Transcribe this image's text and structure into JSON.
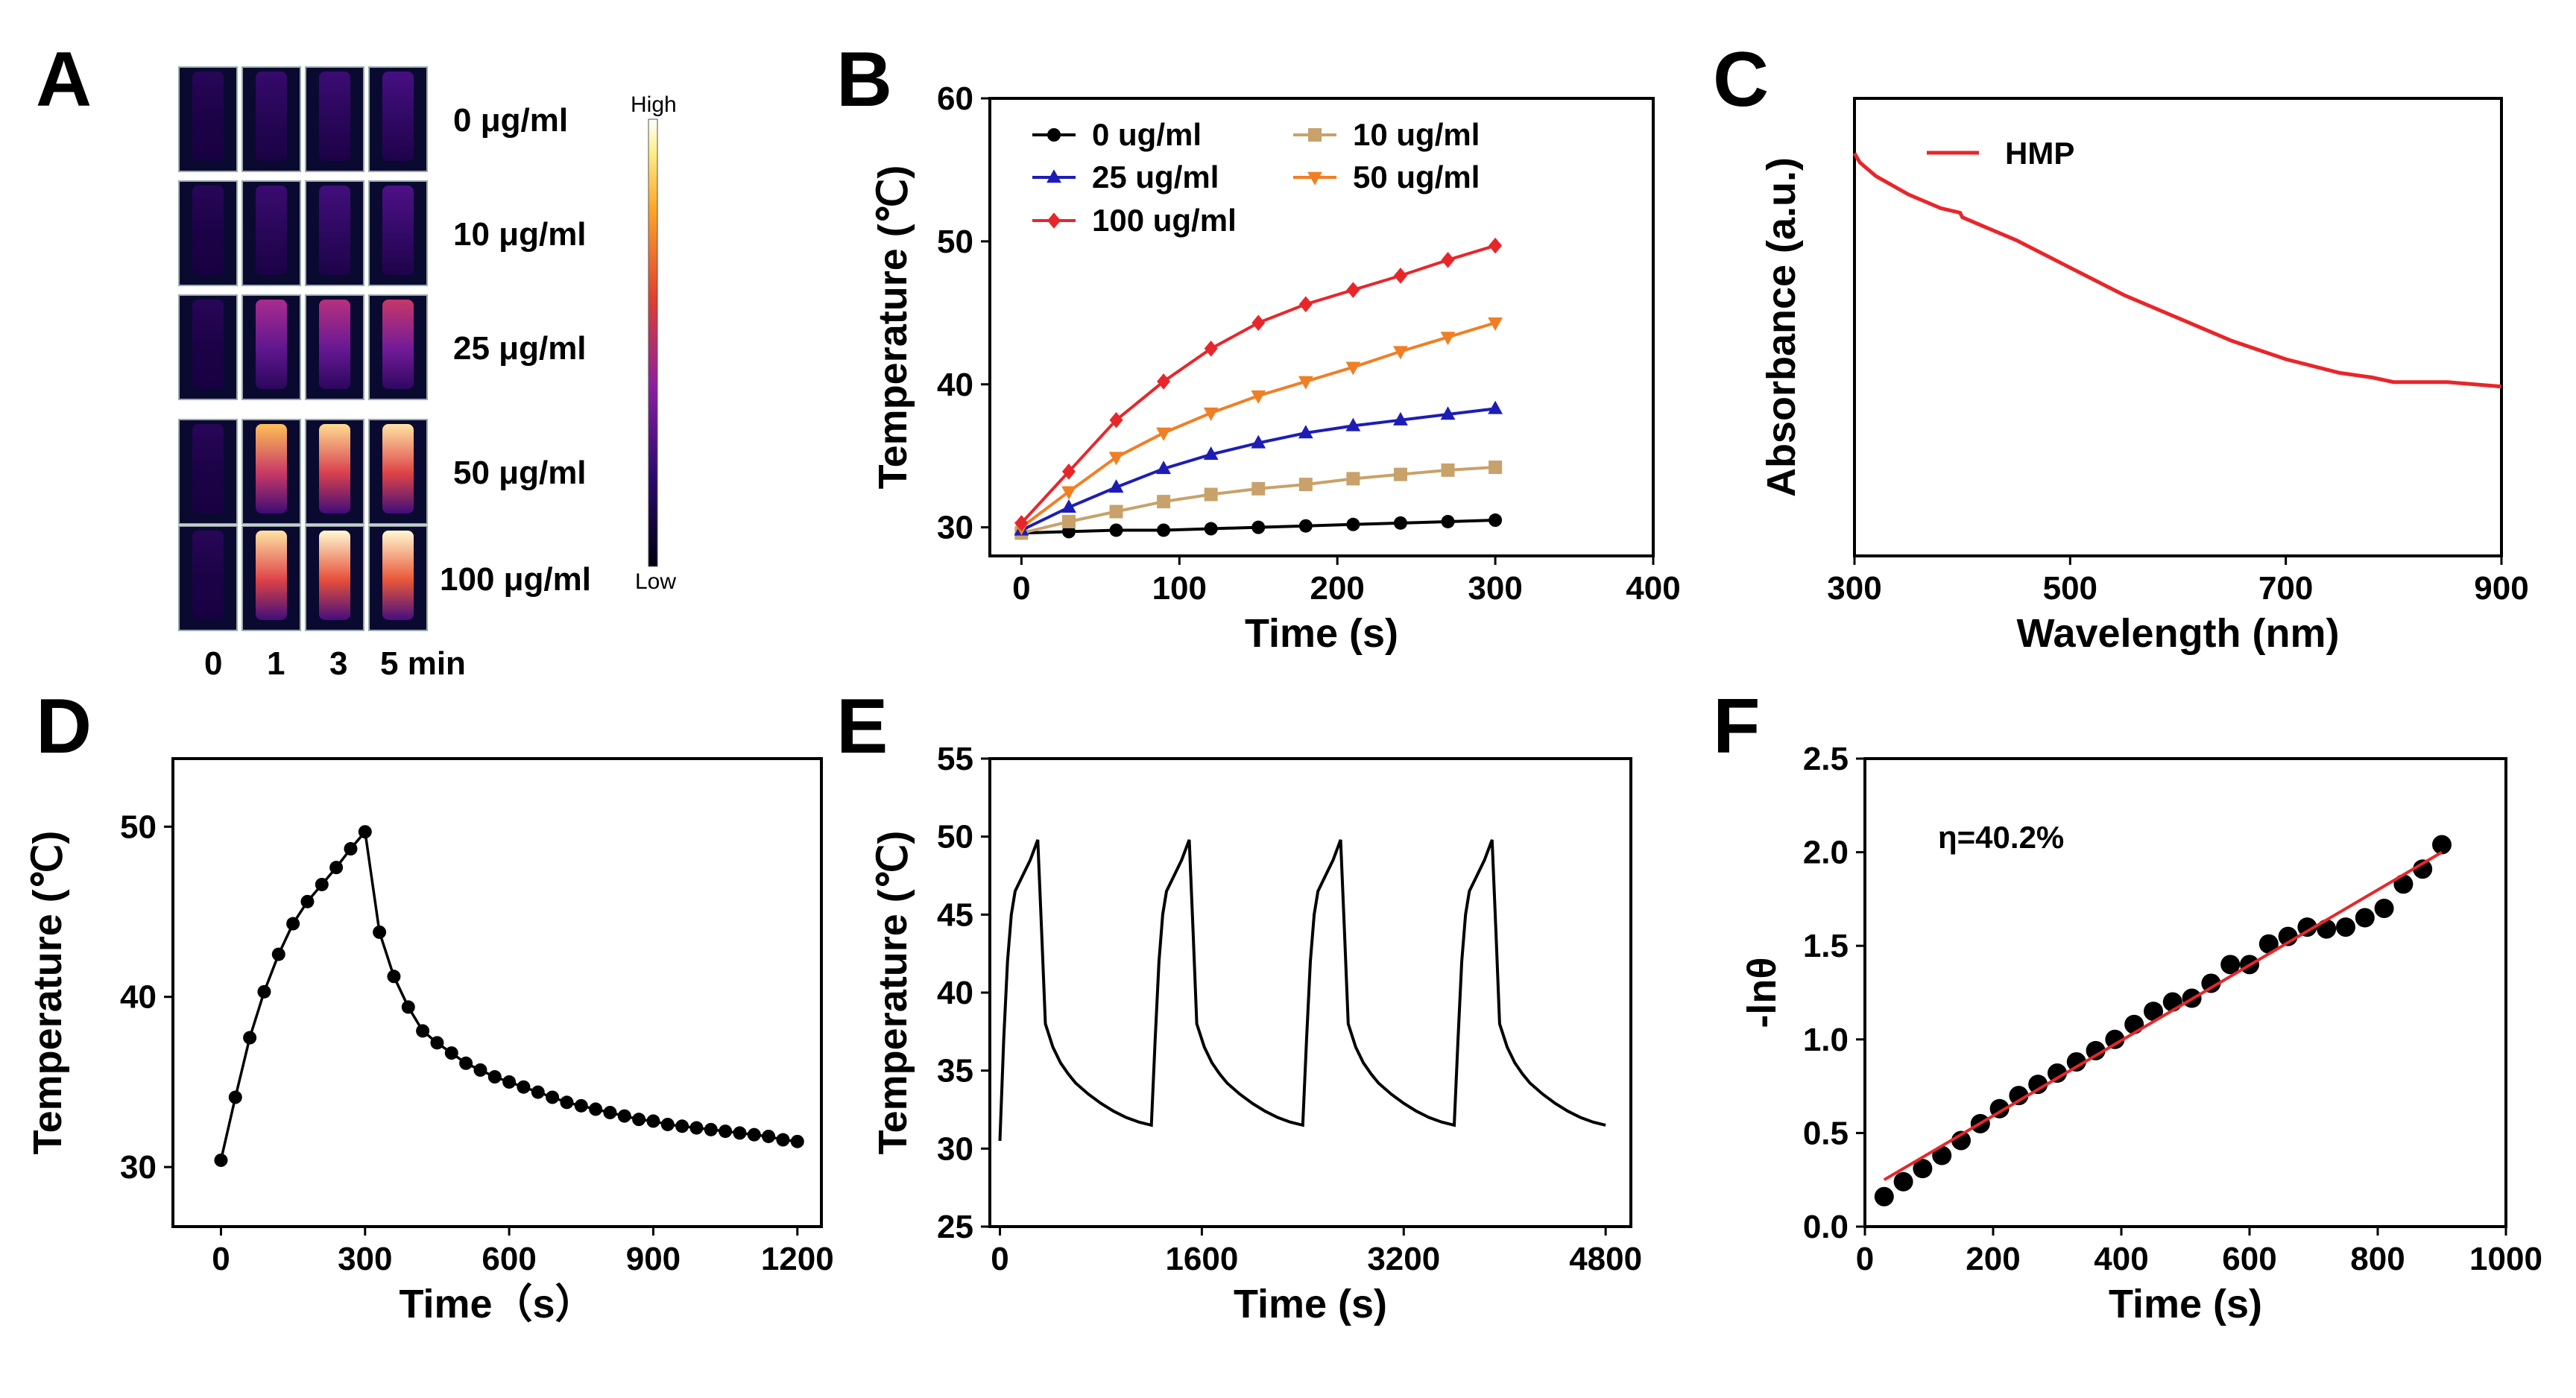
{
  "panel_letters": {
    "a": "A",
    "b": "B",
    "c": "C",
    "d": "D",
    "e": "E",
    "f": "F"
  },
  "colors": {
    "s0": "#000000",
    "s10": "#c8a26a",
    "s25": "#1d1db5",
    "s50": "#f07f24",
    "s100": "#e8262a",
    "hmp": "#e8262a",
    "fit": "#e8262a"
  },
  "panel_a": {
    "concentrations": [
      "0 μg/ml",
      "10 μg/ml",
      "25 μg/ml",
      "50 μg/ml",
      "100 μg/ml"
    ],
    "times": [
      "0",
      "1",
      "3",
      "5 min"
    ],
    "intensity": [
      [
        0.05,
        0.12,
        0.15,
        0.2
      ],
      [
        0.05,
        0.14,
        0.18,
        0.22
      ],
      [
        0.05,
        0.45,
        0.48,
        0.52
      ],
      [
        0.05,
        0.82,
        0.88,
        0.9
      ],
      [
        0.05,
        0.9,
        0.95,
        0.97
      ]
    ],
    "colorbar_high": "High",
    "colorbar_low": "Low"
  },
  "chart_data": [
    {
      "panel": "B",
      "type": "line",
      "xlabel": "Time (s)",
      "ylabel": "Temperature (℃)",
      "xlim": [
        -20,
        400
      ],
      "ylim": [
        28,
        60
      ],
      "xticks": [
        0,
        100,
        200,
        300,
        400
      ],
      "yticks": [
        30,
        40,
        50,
        60
      ],
      "x": [
        0,
        30,
        60,
        90,
        120,
        150,
        180,
        210,
        240,
        270,
        300
      ],
      "series": [
        {
          "name": "0 ug/ml",
          "color": "#000000",
          "marker": "circle",
          "values": [
            29.6,
            29.7,
            29.8,
            29.8,
            29.9,
            30.0,
            30.1,
            30.2,
            30.3,
            30.4,
            30.5
          ]
        },
        {
          "name": "10 ug/ml",
          "color": "#c8a26a",
          "marker": "square",
          "values": [
            29.6,
            30.4,
            31.1,
            31.8,
            32.3,
            32.7,
            33.0,
            33.4,
            33.7,
            34.0,
            34.2
          ]
        },
        {
          "name": "25 ug/ml",
          "color": "#1d1db5",
          "marker": "triangle-up",
          "values": [
            29.8,
            31.4,
            32.8,
            34.1,
            35.1,
            35.9,
            36.6,
            37.1,
            37.5,
            37.9,
            38.3
          ]
        },
        {
          "name": "50 ug/ml",
          "color": "#f07f24",
          "marker": "triangle-down",
          "values": [
            30.0,
            32.5,
            34.9,
            36.6,
            38.0,
            39.2,
            40.2,
            41.2,
            42.3,
            43.3,
            44.3
          ]
        },
        {
          "name": "100 ug/ml",
          "color": "#e8262a",
          "marker": "diamond",
          "values": [
            30.3,
            33.9,
            37.5,
            40.2,
            42.5,
            44.3,
            45.6,
            46.6,
            47.6,
            48.7,
            49.7
          ]
        }
      ]
    },
    {
      "panel": "C",
      "type": "line",
      "xlabel": "Wavelength (nm)",
      "ylabel": "Absorbance (a.u.)",
      "xlim": [
        300,
        900
      ],
      "ylim": [
        0,
        1
      ],
      "xticks": [
        300,
        500,
        700,
        900
      ],
      "series": [
        {
          "name": "HMP",
          "color": "#e8262a",
          "x": [
            300,
            305,
            320,
            350,
            380,
            398,
            400,
            420,
            450,
            500,
            550,
            600,
            650,
            700,
            750,
            780,
            800,
            820,
            850,
            900
          ],
          "values": [
            0.88,
            0.86,
            0.83,
            0.79,
            0.76,
            0.75,
            0.74,
            0.72,
            0.69,
            0.63,
            0.57,
            0.52,
            0.47,
            0.43,
            0.4,
            0.39,
            0.38,
            0.38,
            0.38,
            0.37
          ]
        }
      ]
    },
    {
      "panel": "D",
      "type": "line",
      "xlabel": "Time（s）",
      "ylabel": "Temperature (℃)",
      "xlim": [
        -100,
        1250
      ],
      "ylim": [
        26.5,
        54
      ],
      "xticks": [
        0,
        300,
        600,
        900,
        1200
      ],
      "yticks": [
        30,
        40,
        50
      ],
      "x": [
        0,
        30,
        60,
        90,
        120,
        150,
        180,
        210,
        240,
        270,
        300,
        330,
        360,
        390,
        420,
        450,
        480,
        510,
        540,
        570,
        600,
        630,
        660,
        690,
        720,
        750,
        780,
        810,
        840,
        870,
        900,
        930,
        960,
        990,
        1020,
        1050,
        1080,
        1110,
        1140,
        1170,
        1200
      ],
      "values": [
        30.4,
        34.1,
        37.6,
        40.3,
        42.5,
        44.3,
        45.6,
        46.6,
        47.6,
        48.7,
        49.7,
        43.8,
        41.2,
        39.4,
        38.0,
        37.3,
        36.7,
        36.1,
        35.7,
        35.3,
        35.0,
        34.7,
        34.4,
        34.1,
        33.8,
        33.6,
        33.4,
        33.2,
        33.0,
        32.8,
        32.7,
        32.5,
        32.4,
        32.3,
        32.2,
        32.1,
        32.0,
        31.9,
        31.8,
        31.6,
        31.5
      ]
    },
    {
      "panel": "E",
      "type": "line",
      "xlabel": "Time (s)",
      "ylabel": "Temperature (℃)",
      "xlim": [
        -80,
        5000
      ],
      "ylim": [
        25,
        55
      ],
      "xticks": [
        0,
        1600,
        3200,
        4800
      ],
      "yticks": [
        25,
        30,
        35,
        40,
        45,
        50,
        55
      ],
      "cycles": 4,
      "cycle_times": [
        0,
        30,
        60,
        90,
        120,
        180,
        240,
        300,
        330,
        360,
        420,
        480,
        540,
        600,
        700,
        800,
        900,
        1000,
        1100,
        1200
      ],
      "cycle_values": [
        30.5,
        37,
        42,
        45,
        46.5,
        47.5,
        48.5,
        49.8,
        44,
        38,
        36.5,
        35.5,
        34.8,
        34.2,
        33.5,
        32.9,
        32.4,
        32.0,
        31.7,
        31.5
      ]
    },
    {
      "panel": "F",
      "type": "scatter",
      "xlabel": "Time (s)",
      "ylabel": "-lnθ",
      "xlim": [
        0,
        1000
      ],
      "ylim": [
        0,
        2.5
      ],
      "xticks": [
        0,
        200,
        400,
        600,
        800,
        1000
      ],
      "yticks": [
        0.0,
        0.5,
        1.0,
        1.5,
        2.0,
        2.5
      ],
      "annotation": "η=40.2%",
      "x": [
        30,
        60,
        90,
        120,
        150,
        180,
        210,
        240,
        270,
        300,
        330,
        360,
        390,
        420,
        450,
        480,
        510,
        540,
        570,
        600,
        630,
        660,
        690,
        720,
        750,
        780,
        810,
        840,
        870,
        900
      ],
      "values": [
        0.16,
        0.24,
        0.31,
        0.38,
        0.46,
        0.55,
        0.63,
        0.7,
        0.76,
        0.82,
        0.88,
        0.94,
        1.0,
        1.08,
        1.15,
        1.2,
        1.22,
        1.3,
        1.4,
        1.4,
        1.51,
        1.55,
        1.6,
        1.59,
        1.6,
        1.65,
        1.7,
        1.83,
        1.91,
        2.04
      ],
      "fit": {
        "x": [
          30,
          900
        ],
        "y": [
          0.25,
          2.0
        ]
      }
    }
  ]
}
